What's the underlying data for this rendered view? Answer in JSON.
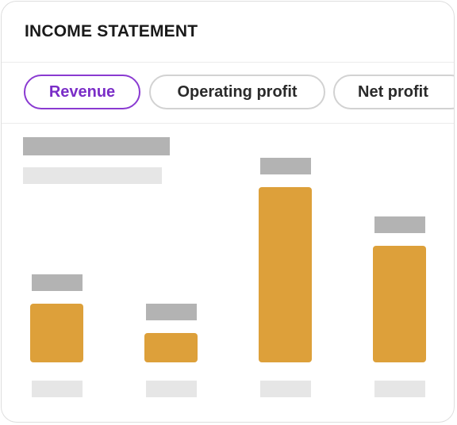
{
  "card": {
    "title": "INCOME STATEMENT"
  },
  "tabs": [
    {
      "label": "Revenue",
      "active": true
    },
    {
      "label": "Operating profit",
      "active": false
    },
    {
      "label": "Net profit",
      "active": false
    }
  ],
  "colors": {
    "accent": "#8a3ad1",
    "bar": "#dda03a",
    "placeholder_dark": "#b3b3b3",
    "placeholder_light": "#e6e6e6"
  },
  "chart_data": {
    "type": "bar",
    "categories": [
      "",
      "",
      "",
      ""
    ],
    "values": [
      32,
      16,
      96,
      64
    ],
    "ylim": [
      0,
      100
    ],
    "title": "",
    "xlabel": "",
    "ylabel": "",
    "grid": false
  }
}
